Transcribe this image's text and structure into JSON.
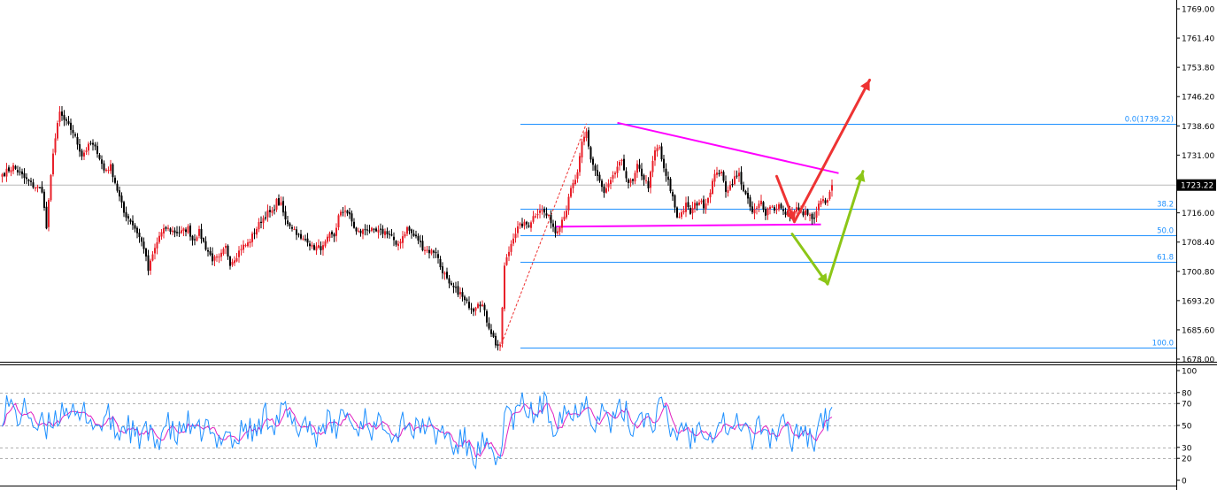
{
  "chart_data": [
    {
      "type": "candlestick",
      "title": "",
      "ylim": [
        1678.0,
        1769.0
      ],
      "y_ticks": [
        "1769.00",
        "1761.40",
        "1753.80",
        "1746.20",
        "1738.60",
        "1731.00",
        "1723.22",
        "1716.00",
        "1708.40",
        "1700.80",
        "1693.20",
        "1685.60",
        "1678.00"
      ],
      "current_price": "1723.22",
      "current_price_value": 1723.22,
      "colors": {
        "up": "#e8202a",
        "down": "#000000",
        "fib": "#1e90ff",
        "trend": "#ff00ff",
        "bull_arrow": "#ee3333",
        "bear_arrow": "#8cc617",
        "swing_line": "#ee3333"
      },
      "candle_close_path": [
        [
          0,
          1726
        ],
        [
          5,
          1728
        ],
        [
          10,
          1725
        ],
        [
          14,
          1723
        ],
        [
          18,
          1722
        ],
        [
          20,
          1712
        ],
        [
          23,
          1732
        ],
        [
          26,
          1742
        ],
        [
          28,
          1740
        ],
        [
          32,
          1737
        ],
        [
          36,
          1731
        ],
        [
          40,
          1734
        ],
        [
          43,
          1732
        ],
        [
          46,
          1727
        ],
        [
          49,
          1728
        ],
        [
          52,
          1722
        ],
        [
          55,
          1716
        ],
        [
          58,
          1714
        ],
        [
          61,
          1711
        ],
        [
          64,
          1707
        ],
        [
          66,
          1701
        ],
        [
          68,
          1705
        ],
        [
          71,
          1710
        ],
        [
          74,
          1712
        ],
        [
          78,
          1711
        ],
        [
          81,
          1711
        ],
        [
          84,
          1712
        ],
        [
          86,
          1709
        ],
        [
          89,
          1711
        ],
        [
          92,
          1707
        ],
        [
          95,
          1704
        ],
        [
          98,
          1704
        ],
        [
          101,
          1707
        ],
        [
          103,
          1703
        ],
        [
          106,
          1705
        ],
        [
          108,
          1707
        ],
        [
          111,
          1708
        ],
        [
          114,
          1711
        ],
        [
          117,
          1714
        ],
        [
          120,
          1716
        ],
        [
          122,
          1716
        ],
        [
          124,
          1719
        ],
        [
          126,
          1718
        ],
        [
          128,
          1714
        ],
        [
          130,
          1713
        ],
        [
          133,
          1711
        ],
        [
          135,
          1709
        ],
        [
          138,
          1709
        ],
        [
          140,
          1707
        ],
        [
          142,
          1707
        ],
        [
          145,
          1707
        ],
        [
          148,
          1710
        ],
        [
          150,
          1710
        ],
        [
          152,
          1715
        ],
        [
          155,
          1717
        ],
        [
          157,
          1715
        ],
        [
          160,
          1711
        ],
        [
          162,
          1711
        ],
        [
          165,
          1712
        ],
        [
          168,
          1711
        ],
        [
          171,
          1711
        ],
        [
          174,
          1711
        ],
        [
          176,
          1710
        ],
        [
          178,
          1707
        ],
        [
          181,
          1710
        ],
        [
          183,
          1712
        ],
        [
          186,
          1710
        ],
        [
          188,
          1709
        ],
        [
          190,
          1707
        ],
        [
          193,
          1706
        ],
        [
          196,
          1706
        ],
        [
          198,
          1702
        ],
        [
          200,
          1700
        ],
        [
          202,
          1697
        ],
        [
          205,
          1696
        ],
        [
          207,
          1695
        ],
        [
          209,
          1693
        ],
        [
          211,
          1692
        ],
        [
          213,
          1691
        ],
        [
          215,
          1693
        ],
        [
          217,
          1692
        ],
        [
          219,
          1688
        ],
        [
          221,
          1685
        ],
        [
          223,
          1682
        ],
        [
          225,
          1681
        ],
        [
          227,
          1702
        ],
        [
          229,
          1706
        ],
        [
          231,
          1710
        ],
        [
          233,
          1712
        ],
        [
          235,
          1713
        ],
        [
          238,
          1713
        ],
        [
          240,
          1715
        ],
        [
          243,
          1717
        ],
        [
          245,
          1716
        ],
        [
          248,
          1714
        ],
        [
          250,
          1711
        ],
        [
          252,
          1713
        ],
        [
          255,
          1717
        ],
        [
          257,
          1722
        ],
        [
          260,
          1726
        ],
        [
          262,
          1734
        ],
        [
          264,
          1737
        ],
        [
          266,
          1730
        ],
        [
          268,
          1727
        ],
        [
          270,
          1724
        ],
        [
          272,
          1721
        ],
        [
          274,
          1723
        ],
        [
          276,
          1725
        ],
        [
          278,
          1728
        ],
        [
          280,
          1729
        ],
        [
          283,
          1724
        ],
        [
          285,
          1724
        ],
        [
          287,
          1728
        ],
        [
          289,
          1726
        ],
        [
          292,
          1723
        ],
        [
          295,
          1732
        ],
        [
          297,
          1733
        ],
        [
          299,
          1727
        ],
        [
          301,
          1724
        ],
        [
          303,
          1720
        ],
        [
          305,
          1715
        ],
        [
          307,
          1716
        ],
        [
          309,
          1718
        ],
        [
          311,
          1716
        ],
        [
          313,
          1718
        ],
        [
          315,
          1719
        ],
        [
          317,
          1718
        ],
        [
          319,
          1720
        ],
        [
          321,
          1724
        ],
        [
          323,
          1727
        ],
        [
          325,
          1726
        ],
        [
          327,
          1722
        ],
        [
          329,
          1723
        ],
        [
          331,
          1725
        ],
        [
          333,
          1726
        ],
        [
          335,
          1722
        ],
        [
          337,
          1719
        ],
        [
          339,
          1716
        ],
        [
          341,
          1717
        ],
        [
          343,
          1719
        ],
        [
          345,
          1716
        ],
        [
          347,
          1718
        ],
        [
          349,
          1717
        ],
        [
          351,
          1718
        ],
        [
          353,
          1716
        ],
        [
          355,
          1716
        ],
        [
          357,
          1716
        ],
        [
          359,
          1717
        ],
        [
          361,
          1716
        ],
        [
          363,
          1716
        ],
        [
          365,
          1715
        ],
        [
          367,
          1714
        ],
        [
          369,
          1718
        ],
        [
          371,
          1719
        ],
        [
          373,
          1719
        ],
        [
          375,
          1725
        ]
      ],
      "osc_close_path": [
        [
          0,
          62
        ],
        [
          5,
          66
        ],
        [
          10,
          59
        ],
        [
          14,
          56
        ],
        [
          18,
          50
        ],
        [
          20,
          36
        ],
        [
          23,
          60
        ],
        [
          26,
          66
        ],
        [
          28,
          63
        ],
        [
          32,
          60
        ],
        [
          36,
          58
        ],
        [
          40,
          55
        ],
        [
          43,
          54
        ],
        [
          46,
          52
        ],
        [
          49,
          52
        ],
        [
          52,
          48
        ],
        [
          55,
          45
        ],
        [
          58,
          45
        ],
        [
          61,
          43
        ],
        [
          64,
          40
        ],
        [
          66,
          35
        ],
        [
          68,
          39
        ],
        [
          71,
          43
        ],
        [
          74,
          45
        ],
        [
          78,
          45
        ],
        [
          81,
          45
        ],
        [
          84,
          47
        ],
        [
          86,
          44
        ],
        [
          89,
          46
        ],
        [
          92,
          43
        ],
        [
          95,
          40
        ],
        [
          98,
          40
        ],
        [
          101,
          43
        ],
        [
          103,
          39
        ],
        [
          106,
          41
        ],
        [
          108,
          43
        ],
        [
          111,
          44
        ],
        [
          114,
          48
        ],
        [
          117,
          52
        ],
        [
          120,
          55
        ],
        [
          122,
          58
        ],
        [
          124,
          61
        ],
        [
          126,
          60
        ],
        [
          128,
          55
        ],
        [
          130,
          54
        ],
        [
          133,
          52
        ],
        [
          135,
          49
        ],
        [
          138,
          49
        ],
        [
          140,
          47
        ],
        [
          142,
          47
        ],
        [
          145,
          47
        ],
        [
          148,
          50
        ],
        [
          150,
          50
        ],
        [
          152,
          55
        ],
        [
          155,
          57
        ],
        [
          157,
          55
        ],
        [
          160,
          51
        ],
        [
          162,
          51
        ],
        [
          165,
          52
        ],
        [
          168,
          51
        ],
        [
          171,
          51
        ],
        [
          174,
          51
        ],
        [
          176,
          50
        ],
        [
          178,
          47
        ],
        [
          181,
          50
        ],
        [
          183,
          52
        ],
        [
          186,
          50
        ],
        [
          188,
          49
        ],
        [
          190,
          47
        ],
        [
          193,
          46
        ],
        [
          196,
          46
        ],
        [
          198,
          42
        ],
        [
          200,
          40
        ],
        [
          202,
          37
        ],
        [
          205,
          34
        ],
        [
          207,
          33
        ],
        [
          209,
          30
        ],
        [
          211,
          28
        ],
        [
          213,
          27
        ],
        [
          215,
          28
        ],
        [
          217,
          27
        ],
        [
          219,
          25
        ],
        [
          221,
          22
        ],
        [
          223,
          20
        ],
        [
          225,
          20
        ],
        [
          227,
          55
        ],
        [
          229,
          60
        ],
        [
          231,
          62
        ],
        [
          233,
          63
        ],
        [
          235,
          63
        ],
        [
          238,
          64
        ],
        [
          240,
          64
        ],
        [
          243,
          65
        ],
        [
          245,
          63
        ],
        [
          248,
          60
        ],
        [
          250,
          57
        ],
        [
          252,
          58
        ],
        [
          255,
          61
        ],
        [
          257,
          64
        ],
        [
          260,
          67
        ],
        [
          262,
          69
        ],
        [
          264,
          70
        ],
        [
          266,
          64
        ],
        [
          268,
          61
        ],
        [
          270,
          58
        ],
        [
          272,
          55
        ],
        [
          274,
          57
        ],
        [
          276,
          58
        ],
        [
          278,
          60
        ],
        [
          280,
          60
        ],
        [
          283,
          55
        ],
        [
          285,
          55
        ],
        [
          287,
          58
        ],
        [
          289,
          56
        ],
        [
          292,
          54
        ],
        [
          295,
          62
        ],
        [
          297,
          63
        ],
        [
          299,
          56
        ],
        [
          301,
          52
        ],
        [
          303,
          48
        ],
        [
          305,
          44
        ],
        [
          307,
          45
        ],
        [
          309,
          46
        ],
        [
          311,
          44
        ],
        [
          313,
          46
        ],
        [
          315,
          47
        ],
        [
          317,
          46
        ],
        [
          319,
          47
        ],
        [
          321,
          50
        ],
        [
          323,
          53
        ],
        [
          325,
          51
        ],
        [
          327,
          48
        ],
        [
          329,
          49
        ],
        [
          331,
          51
        ],
        [
          333,
          51
        ],
        [
          335,
          47
        ],
        [
          337,
          45
        ],
        [
          339,
          43
        ],
        [
          341,
          44
        ],
        [
          343,
          46
        ],
        [
          345,
          43
        ],
        [
          347,
          45
        ],
        [
          349,
          44
        ],
        [
          351,
          45
        ],
        [
          353,
          43
        ],
        [
          355,
          43
        ],
        [
          357,
          44
        ],
        [
          359,
          45
        ],
        [
          361,
          44
        ],
        [
          363,
          44
        ],
        [
          365,
          43
        ],
        [
          367,
          42
        ],
        [
          369,
          48
        ],
        [
          371,
          52
        ],
        [
          373,
          55
        ],
        [
          375,
          60
        ]
      ],
      "fibonacci": {
        "levels": [
          {
            "label": "0.0(1739.22)",
            "value": 1739.22
          },
          {
            "label": "38.2",
            "value": 1717.0
          },
          {
            "label": "50.0",
            "value": 1710.1
          },
          {
            "label": "61.8",
            "value": 1703.3
          },
          {
            "label": "100.0",
            "value": 1681.0
          }
        ]
      },
      "trendlines": [
        {
          "kind": "resistance",
          "from": [
            278,
            1739.4
          ],
          "to": [
            378,
            1726.3
          ]
        },
        {
          "kind": "support",
          "from": [
            250,
            1712.4
          ],
          "to": [
            370,
            1713.0
          ]
        }
      ],
      "swing_line": {
        "from": [
          225,
          1681.0
        ],
        "to": [
          264,
          1739.2
        ]
      },
      "scenario_arrows": [
        {
          "kind": "bullish",
          "path": [
            [
              350,
              1725.5
            ],
            [
              358,
              1713.7
            ],
            [
              392,
              1750.5
            ]
          ]
        },
        {
          "kind": "bearish",
          "path": [
            [
              357,
              1710.5
            ],
            [
              373,
              1697.5
            ],
            [
              389,
              1726.8
            ]
          ]
        }
      ]
    },
    {
      "type": "line",
      "title": "",
      "ylim": [
        0,
        100
      ],
      "y_ticks": [
        "100",
        "80",
        "70",
        "50",
        "30",
        "20",
        "0"
      ],
      "levels": [
        80,
        70,
        50,
        30,
        20
      ],
      "series_colors": [
        "#1e90ff",
        "#e020c0"
      ]
    }
  ]
}
